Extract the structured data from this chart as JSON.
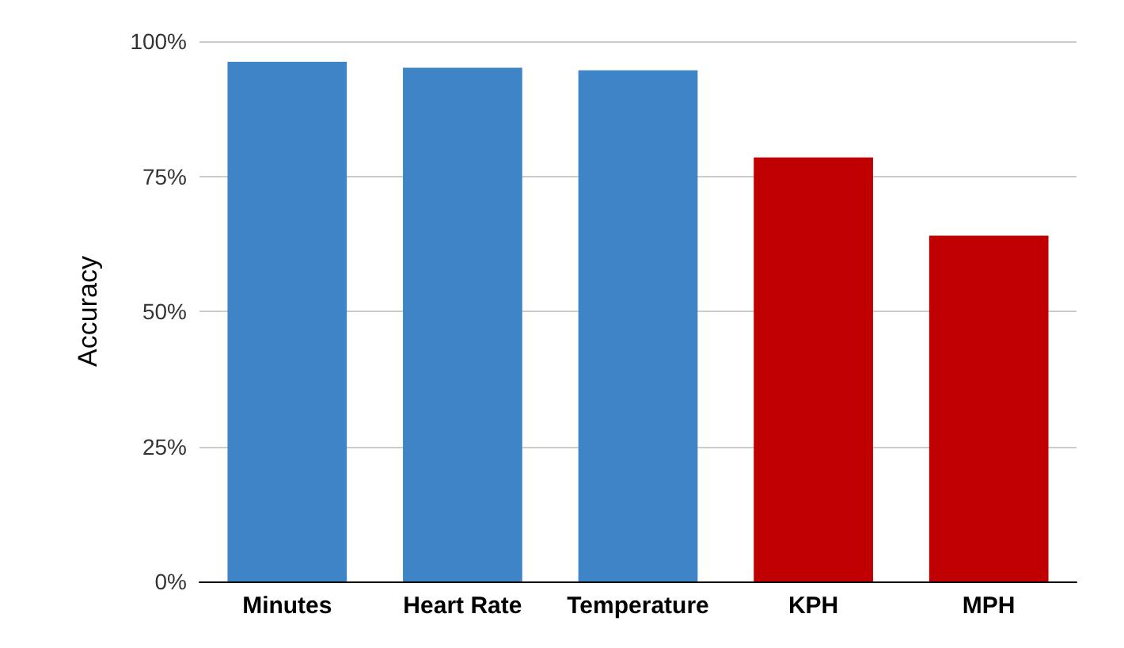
{
  "chart_data": {
    "type": "bar",
    "ylabel": "Accuracy",
    "categories": [
      "Minutes",
      "Heart Rate",
      "Temperature",
      "KPH",
      "MPH"
    ],
    "values": [
      96.2,
      95.1,
      94.6,
      78.5,
      64
    ],
    "colors": [
      "#3d85c6",
      "#3d85c6",
      "#3d85c6",
      "#c00000",
      "#c00000"
    ],
    "ylim": [
      0,
      100
    ],
    "yticks": [
      {
        "value": 0,
        "label": "0%"
      },
      {
        "value": 25,
        "label": "25%"
      },
      {
        "value": 50,
        "label": "50%"
      },
      {
        "value": 75,
        "label": "75%"
      },
      {
        "value": 100,
        "label": "100%"
      }
    ],
    "grid": "y"
  }
}
